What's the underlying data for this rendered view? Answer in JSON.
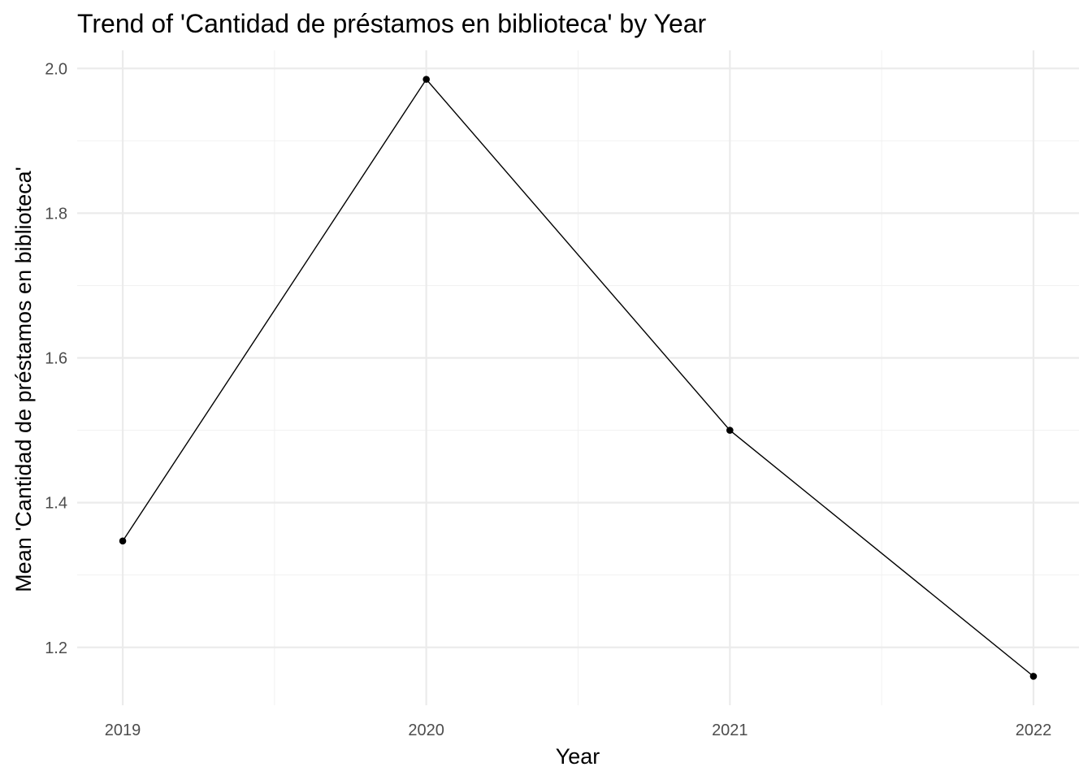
{
  "chart_data": {
    "type": "line",
    "title": "Trend of 'Cantidad de préstamos en biblioteca' by Year",
    "xlabel": "Year",
    "ylabel": "Mean 'Cantidad de préstamos en biblioteca'",
    "x": [
      2019,
      2020,
      2021,
      2022
    ],
    "x_tick_labels": [
      "2019",
      "2020",
      "2021",
      "2022"
    ],
    "series": [
      {
        "values": [
          1.347,
          1.985,
          1.5,
          1.16
        ]
      }
    ],
    "y_ticks": [
      1.2,
      1.4,
      1.6,
      1.8,
      2.0
    ],
    "y_tick_labels": [
      "1.2",
      "1.4",
      "1.6",
      "1.8",
      "2.0"
    ],
    "ylim": [
      1.12,
      2.025
    ],
    "xlim": [
      2018.85,
      2022.15
    ],
    "grid": true,
    "line_color": "#000000",
    "point_color": "#000000"
  }
}
